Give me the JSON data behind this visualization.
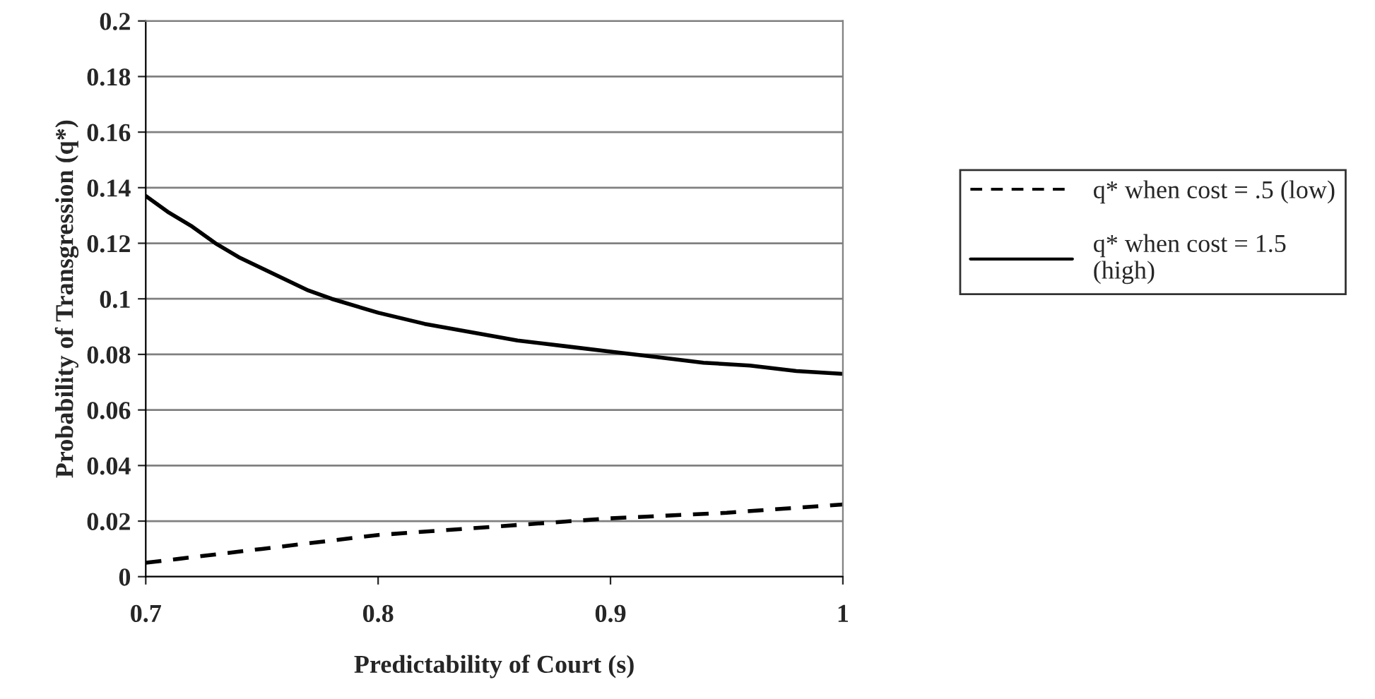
{
  "chart_data": {
    "type": "line",
    "xlabel": "Predictability of Court (s)",
    "ylabel": "Probability of Transgression (q*)",
    "xlim": [
      0.7,
      1
    ],
    "xticks": [
      0.7,
      0.8,
      0.9,
      1
    ],
    "ylim": [
      0,
      0.2
    ],
    "yticks": [
      0,
      0.02,
      0.04,
      0.06,
      0.08,
      0.1,
      0.12,
      0.14,
      0.16,
      0.18,
      0.2
    ],
    "grid": "y",
    "legend": "right",
    "marker": "none",
    "series": [
      {
        "name": "q* when cost = .5 (low)",
        "color": "#000000",
        "line_style": "dashed",
        "x": [
          0.7,
          0.75,
          0.8,
          0.85,
          0.9,
          0.95,
          1.0
        ],
        "values": [
          0.005,
          0.01,
          0.015,
          0.018,
          0.021,
          0.023,
          0.026
        ]
      },
      {
        "name": "q* when cost = 1.5 (high)",
        "color": "#000000",
        "line_style": "solid",
        "x": [
          0.7,
          0.71,
          0.72,
          0.73,
          0.74,
          0.75,
          0.76,
          0.77,
          0.78,
          0.8,
          0.82,
          0.84,
          0.86,
          0.88,
          0.9,
          0.92,
          0.94,
          0.96,
          0.98,
          1.0
        ],
        "values": [
          0.137,
          0.131,
          0.126,
          0.12,
          0.115,
          0.111,
          0.107,
          0.103,
          0.1,
          0.095,
          0.091,
          0.088,
          0.085,
          0.083,
          0.081,
          0.079,
          0.077,
          0.076,
          0.074,
          0.073
        ]
      }
    ]
  }
}
